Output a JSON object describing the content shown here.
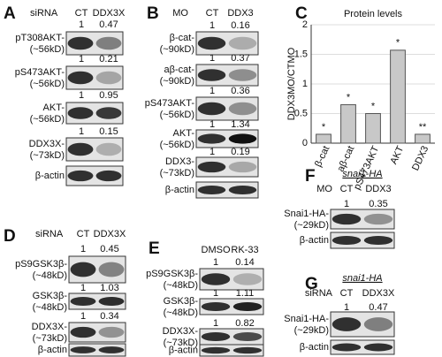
{
  "panels": [
    {
      "label": "A",
      "header": {
        "condition": "siRNA",
        "cols": [
          "CT",
          "DDX3X"
        ]
      },
      "rows": [
        {
          "name": "pT308AKT-",
          "mw": "(~56kD)",
          "values": [
            1,
            0.47
          ]
        },
        {
          "name": "pS473AKT-",
          "mw": "(~56kD)",
          "values": [
            1,
            0.21
          ]
        },
        {
          "name": "AKT-",
          "mw": "(~56kD)",
          "values": [
            1,
            0.95
          ]
        },
        {
          "name": "DDX3X-",
          "mw": "(~73kD)",
          "values": [
            1,
            0.15
          ]
        },
        {
          "name": "β-actin"
        }
      ]
    },
    {
      "label": "B",
      "header": {
        "condition": "MO",
        "cols": [
          "CT",
          "DDX3"
        ]
      },
      "rows": [
        {
          "name": "β-cat-",
          "mw": "(~90kD)",
          "values": [
            1,
            0.16
          ]
        },
        {
          "name": "aβ-cat-",
          "mw": "(~90kD)",
          "values": [
            1,
            0.37
          ]
        },
        {
          "name": "pS473AKT-",
          "mw": "(~56kD)",
          "values": [
            1,
            0.36
          ]
        },
        {
          "name": "AKT-",
          "mw": "(~56kD)",
          "values": [
            1,
            1.34
          ]
        },
        {
          "name": "DDX3-",
          "mw": "(~73kD)",
          "values": [
            1,
            0.19
          ]
        },
        {
          "name": "β-actin"
        }
      ]
    },
    {
      "label": "D",
      "header": {
        "condition": "siRNA",
        "cols": [
          "CT",
          "DDX3X"
        ]
      },
      "rows": [
        {
          "name": "pS9GSK3β-",
          "mw": "(~48kD)",
          "values": [
            1,
            0.45
          ]
        },
        {
          "name": "GSK3β-",
          "mw": "(~48kD)",
          "values": [
            1,
            1.03
          ]
        },
        {
          "name": "DDX3X-",
          "mw": "(~73kD)",
          "values": [
            1,
            0.34
          ]
        },
        {
          "name": "β-actin"
        }
      ]
    },
    {
      "label": "E",
      "header": {
        "cols": [
          "DMSO",
          "RK-33"
        ]
      },
      "rows": [
        {
          "name": "pS9GSK3β-",
          "mw": "(~48kD)",
          "values": [
            1,
            0.14
          ]
        },
        {
          "name": "GSK3β-",
          "mw": "(~48kD)",
          "values": [
            1,
            1.11
          ]
        },
        {
          "name": "DDX3X-",
          "mw": "(~73kD)",
          "values": [
            1,
            0.82
          ]
        },
        {
          "name": "β-actin"
        }
      ]
    },
    {
      "label": "F",
      "subtitle": "snai1-HA",
      "header": {
        "condition": "MO",
        "cols": [
          "CT",
          "DDX3"
        ]
      },
      "rows": [
        {
          "name": "Snai1-HA-",
          "mw": "(~29kD)",
          "values": [
            1,
            0.35
          ]
        },
        {
          "name": "β-actin"
        }
      ]
    },
    {
      "label": "G",
      "subtitle": "snai1-HA",
      "header": {
        "condition": "siRNA",
        "cols": [
          "CT",
          "DDX3X"
        ]
      },
      "rows": [
        {
          "name": "Snai1-HA-",
          "mw": "(~29kD)",
          "values": [
            1,
            0.47
          ]
        },
        {
          "name": "β-actin"
        }
      ]
    }
  ],
  "chart_data": {
    "type": "bar",
    "label": "C",
    "title": "Protein levels",
    "y_label": "DDX3MO/CTMO",
    "categories": [
      "β-cat",
      "aβ-cat",
      "pS473AKT",
      "AKT",
      "DDX3"
    ],
    "values": [
      0.15,
      0.65,
      0.5,
      1.57,
      0.15
    ],
    "annotations": [
      "*",
      "*",
      "*",
      "*",
      "**"
    ],
    "color": "#c8c8c8",
    "ylim": [
      0,
      2
    ],
    "yticks": [
      0,
      0.5,
      1,
      1.5,
      2
    ],
    "grid": true
  }
}
